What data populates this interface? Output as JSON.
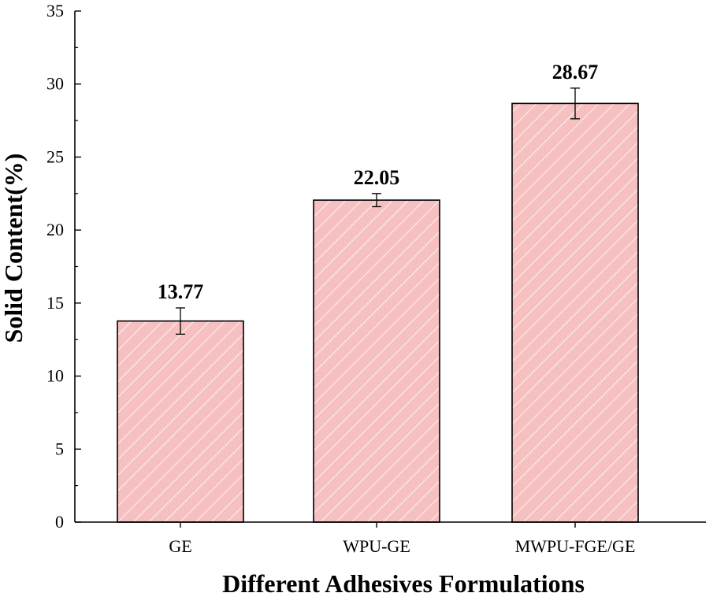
{
  "chart_data": {
    "type": "bar",
    "title": "",
    "xlabel": "Different Adhesives Formulations",
    "ylabel": "Solid Content(%)",
    "ylim": [
      0,
      35
    ],
    "yticks": [
      0,
      5,
      10,
      15,
      20,
      25,
      30,
      35
    ],
    "yticks_labels": [
      "0",
      "5",
      "10",
      "15",
      "20",
      "25",
      "30",
      "35"
    ],
    "categories": [
      "GE",
      "WPU-GE",
      "MWPU-FGE/GE"
    ],
    "values": [
      13.77,
      22.05,
      28.67
    ],
    "value_labels": [
      "13.77",
      "22.05",
      "28.67"
    ],
    "errors": [
      0.9,
      0.45,
      1.05
    ],
    "grid": false,
    "legend": null,
    "colors": {
      "bar_fill": "#f6c0c0",
      "bar_stroke": "#000000",
      "hatch": "#ffffff",
      "axis": "#000000"
    }
  }
}
